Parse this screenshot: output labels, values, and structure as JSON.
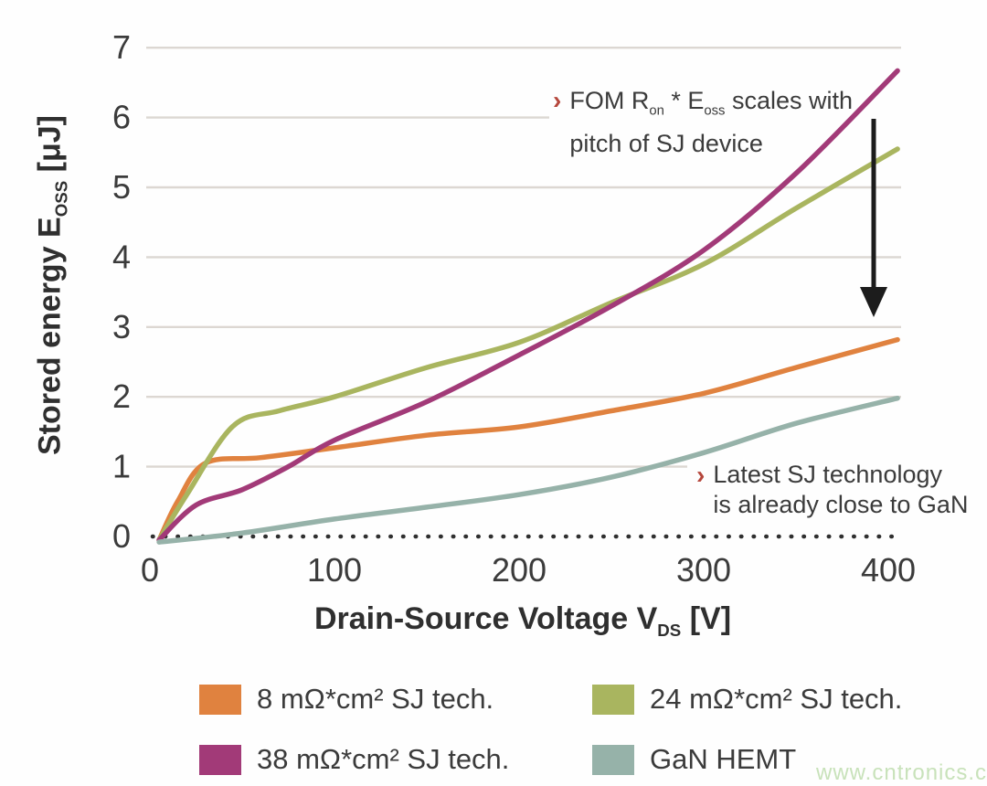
{
  "watermark": "www.cntronics.com",
  "chart_data": {
    "type": "line",
    "title": "",
    "grid": "horizontal",
    "x_axis": {
      "label_parts": {
        "text": "Drain-Source Voltage V",
        "sub": "DS",
        "unit": " [V]"
      },
      "ticks": [
        0,
        100,
        200,
        300,
        400
      ],
      "range": [
        0,
        410
      ]
    },
    "y_axis": {
      "label_parts": {
        "text": "Stored energy E",
        "sub": "OSS",
        "unit": " [μJ]"
      },
      "ticks": [
        0,
        1,
        2,
        3,
        4,
        5,
        6,
        7
      ],
      "range": [
        0,
        7
      ]
    },
    "series": [
      {
        "name": "8 mΩ*cm² SJ tech.",
        "color": "#e0823f",
        "points": [
          [
            5,
            -0.05
          ],
          [
            15,
            0.5
          ],
          [
            30,
            1.05
          ],
          [
            60,
            1.13
          ],
          [
            100,
            1.27
          ],
          [
            150,
            1.45
          ],
          [
            200,
            1.57
          ],
          [
            250,
            1.8
          ],
          [
            300,
            2.05
          ],
          [
            350,
            2.42
          ],
          [
            405,
            2.82
          ]
        ]
      },
      {
        "name": "24 mΩ*cm² SJ tech.",
        "color": "#a9b55f",
        "points": [
          [
            5,
            -0.05
          ],
          [
            20,
            0.6
          ],
          [
            45,
            1.58
          ],
          [
            70,
            1.8
          ],
          [
            100,
            2.0
          ],
          [
            150,
            2.42
          ],
          [
            200,
            2.78
          ],
          [
            250,
            3.35
          ],
          [
            300,
            3.9
          ],
          [
            350,
            4.7
          ],
          [
            405,
            5.55
          ]
        ]
      },
      {
        "name": "38 mΩ*cm² SJ tech.",
        "color": "#a23a78",
        "points": [
          [
            5,
            -0.05
          ],
          [
            25,
            0.45
          ],
          [
            50,
            0.67
          ],
          [
            75,
            1.0
          ],
          [
            100,
            1.38
          ],
          [
            150,
            1.93
          ],
          [
            200,
            2.6
          ],
          [
            250,
            3.3
          ],
          [
            300,
            4.1
          ],
          [
            350,
            5.2
          ],
          [
            405,
            6.67
          ]
        ]
      },
      {
        "name": "GaN HEMT",
        "color": "#96b2a9",
        "points": [
          [
            5,
            -0.08
          ],
          [
            50,
            0.05
          ],
          [
            100,
            0.25
          ],
          [
            150,
            0.42
          ],
          [
            200,
            0.6
          ],
          [
            250,
            0.85
          ],
          [
            300,
            1.2
          ],
          [
            350,
            1.62
          ],
          [
            405,
            1.98
          ]
        ]
      }
    ],
    "legend": {
      "items": [
        {
          "label": "8 mΩ*cm² SJ tech.",
          "color": "#e0823f"
        },
        {
          "label": "38 mΩ*cm² SJ tech.",
          "color": "#a23a78"
        },
        {
          "label": "24 mΩ*cm² SJ tech.",
          "color": "#a9b55f"
        },
        {
          "label": "GaN HEMT",
          "color": "#96b2a9"
        }
      ]
    },
    "annotations": {
      "fom": {
        "chevron": "›",
        "p1": "FOM R",
        "sub1": "on",
        "p2": " * E",
        "sub2": "oss",
        "p3": " scales with",
        "line2": "pitch of SJ device"
      },
      "gan": {
        "chevron": "›",
        "line1": "Latest SJ technology",
        "line2": "is already close to GaN"
      }
    }
  }
}
